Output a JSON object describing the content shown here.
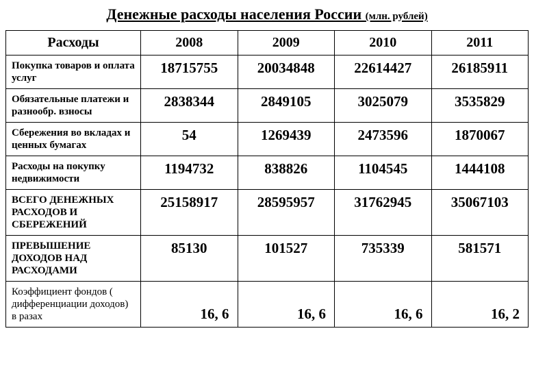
{
  "title_main": "Денежные расходы населения России ",
  "title_sub": "(млн. рублей)",
  "table": {
    "type": "table",
    "background_color": "#ffffff",
    "border_color": "#000000",
    "text_color": "#000000",
    "header_fontsize": 20,
    "label_fontsize": 15,
    "value_fontsize": 21,
    "font_family": "Times New Roman",
    "columns": [
      "Расходы",
      "2008",
      "2009",
      "2010",
      "2011"
    ],
    "rows": [
      {
        "label": "Покупка товаров и оплата услуг",
        "bold": true,
        "align": "center",
        "values": [
          "18715755",
          "20034848",
          "22614427",
          "26185911"
        ]
      },
      {
        "label": "Обязательные платежи и разнообр. взносы",
        "bold": true,
        "align": "center",
        "values": [
          "2838344",
          "2849105",
          "3025079",
          "3535829"
        ]
      },
      {
        "label": "Сбережения во вкладах и ценных бумагах",
        "bold": true,
        "align": "center",
        "values": [
          "54",
          "1269439",
          "2473596",
          "1870067"
        ]
      },
      {
        "label": "Расходы на покупку недвижимости",
        "bold": true,
        "align": "center",
        "values": [
          "1194732",
          "838826",
          "1104545",
          "1444108"
        ]
      },
      {
        "label": "ВСЕГО ДЕНЕЖНЫХ РАСХОДОВ И СБЕРЕЖЕНИЙ",
        "bold": true,
        "align": "center",
        "values": [
          "25158917",
          "28595957",
          "31762945",
          "35067103"
        ]
      },
      {
        "label": "ПРЕВЫШЕНИЕ ДОХОДОВ НАД РАСХОДАМИ",
        "bold": true,
        "align": "center",
        "values": [
          "85130",
          "101527",
          "735339",
          "581571"
        ]
      },
      {
        "label": "Коэффициент фондов ( дифференциации доходов) в разах",
        "bold": false,
        "align": "bottom-right",
        "values": [
          "16, 6",
          "16, 6",
          "16, 6",
          "16, 2"
        ]
      }
    ]
  }
}
